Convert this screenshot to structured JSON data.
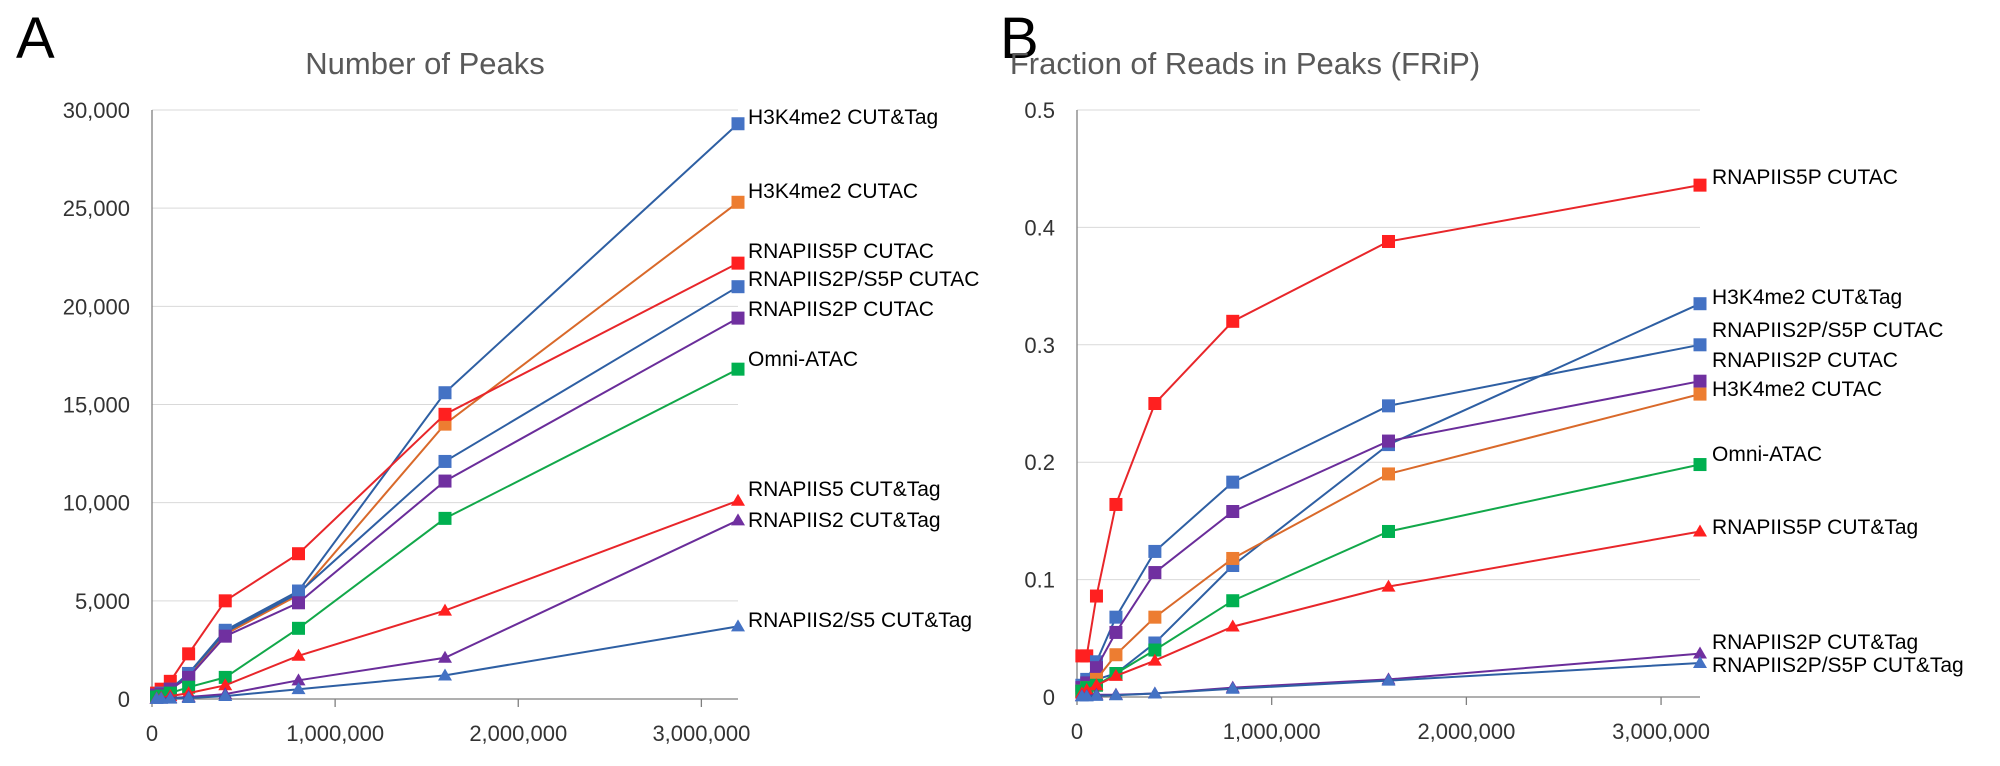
{
  "chart_data": [
    {
      "type": "line",
      "panel_label": "A",
      "title": "Number of Peaks",
      "xlabel": "",
      "ylabel": "",
      "xlim": [
        0,
        3200000
      ],
      "ylim": [
        0,
        30000
      ],
      "xticks": [
        0,
        1000000,
        2000000,
        3000000
      ],
      "xtick_labels": [
        "0",
        "1,000,000",
        "2,000,000",
        "3,000,000"
      ],
      "yticks": [
        0,
        5000,
        10000,
        15000,
        20000,
        25000,
        30000
      ],
      "ytick_labels": [
        "0",
        "5,000",
        "10,000",
        "15,000",
        "20,000",
        "25,000",
        "30,000"
      ],
      "grid": true,
      "legend": "labels at line ends",
      "x": [
        25000,
        50000,
        100000,
        200000,
        400000,
        800000,
        1600000,
        3200000
      ],
      "series": [
        {
          "name": "H3K4me2 CUT&Tag",
          "color": "#4472c4",
          "line_color": "#2e5fa3",
          "marker": "square",
          "values": [
            100,
            200,
            400,
            1300,
            3500,
            5500,
            15600,
            29300
          ]
        },
        {
          "name": "H3K4me2 CUTAC",
          "color": "#ed7d31",
          "line_color": "#d9692a",
          "marker": "square",
          "values": [
            200,
            300,
            500,
            1200,
            3300,
            5300,
            14000,
            25300
          ]
        },
        {
          "name": "RNAPIIS5P CUTAC",
          "color": "#ff2020",
          "line_color": "#e8262a",
          "marker": "square",
          "values": [
            300,
            500,
            900,
            2300,
            5000,
            7400,
            14500,
            22200
          ]
        },
        {
          "name": "RNAPIIS2P/S5P CUTAC",
          "color": "#4472c4",
          "line_color": "#2e5fa3",
          "marker": "square",
          "values": [
            200,
            300,
            500,
            1300,
            3400,
            5400,
            12100,
            21000
          ]
        },
        {
          "name": "RNAPIIS2P CUTAC",
          "color": "#7030a0",
          "line_color": "#6a2d9a",
          "marker": "square",
          "values": [
            200,
            250,
            500,
            1100,
            3200,
            4900,
            11100,
            19400
          ]
        },
        {
          "name": "Omni-ATAC",
          "color": "#00b050",
          "line_color": "#12a84a",
          "marker": "square",
          "values": [
            100,
            150,
            300,
            600,
            1100,
            3600,
            9200,
            16800
          ]
        },
        {
          "name": "RNAPIIS5 CUT&Tag",
          "color": "#ff2020",
          "line_color": "#e8262a",
          "marker": "triangle",
          "values": [
            30,
            60,
            150,
            300,
            700,
            2200,
            4500,
            10100
          ]
        },
        {
          "name": "RNAPIIS2 CUT&Tag",
          "color": "#7030a0",
          "line_color": "#6a2d9a",
          "marker": "triangle",
          "values": [
            10,
            20,
            50,
            100,
            250,
            950,
            2100,
            9100
          ]
        },
        {
          "name": "RNAPIIS2/S5 CUT&Tag",
          "color": "#4472c4",
          "line_color": "#2e5fa3",
          "marker": "triangle",
          "values": [
            5,
            10,
            20,
            50,
            150,
            500,
            1200,
            3700
          ]
        }
      ]
    },
    {
      "type": "line",
      "panel_label": "B",
      "title": "Fraction of Reads in Peaks (FRiP)",
      "xlabel": "",
      "ylabel": "",
      "xlim": [
        0,
        3200000
      ],
      "ylim": [
        0,
        0.5
      ],
      "xticks": [
        0,
        1000000,
        2000000,
        3000000
      ],
      "xtick_labels": [
        "0",
        "1,000,000",
        "2,000,000",
        "3,000,000"
      ],
      "yticks": [
        0,
        0.1,
        0.2,
        0.3,
        0.4,
        0.5
      ],
      "ytick_labels": [
        "0",
        "0.1",
        "0.2",
        "0.3",
        "0.4",
        "0.5"
      ],
      "grid": true,
      "legend": "labels at line ends",
      "x": [
        25000,
        50000,
        100000,
        200000,
        400000,
        800000,
        1600000,
        3200000
      ],
      "series": [
        {
          "name": "RNAPIIS5P CUTAC",
          "color": "#ff2020",
          "line_color": "#e8262a",
          "marker": "square",
          "values": [
            0.035,
            0.035,
            0.086,
            0.164,
            0.25,
            0.32,
            0.388,
            0.436
          ]
        },
        {
          "name": "H3K4me2 CUT&Tag",
          "color": "#4472c4",
          "line_color": "#2e5fa3",
          "marker": "square",
          "values": [
            0.005,
            0.01,
            0.015,
            0.02,
            0.046,
            0.112,
            0.215,
            0.335
          ]
        },
        {
          "name": "RNAPIIS2P/S5P CUTAC",
          "color": "#4472c4",
          "line_color": "#2e5fa3",
          "marker": "square",
          "values": [
            0.01,
            0.015,
            0.03,
            0.068,
            0.124,
            0.183,
            0.248,
            0.3
          ]
        },
        {
          "name": "RNAPIIS2P CUTAC",
          "color": "#7030a0",
          "line_color": "#6a2d9a",
          "marker": "square",
          "values": [
            0.008,
            0.012,
            0.025,
            0.055,
            0.106,
            0.158,
            0.218,
            0.269
          ]
        },
        {
          "name": "H3K4me2 CUTAC",
          "color": "#ed7d31",
          "line_color": "#d9692a",
          "marker": "square",
          "values": [
            0.005,
            0.008,
            0.015,
            0.036,
            0.068,
            0.118,
            0.19,
            0.258
          ]
        },
        {
          "name": "Omni-ATAC",
          "color": "#00b050",
          "line_color": "#12a84a",
          "marker": "square",
          "values": [
            0.005,
            0.008,
            0.01,
            0.02,
            0.04,
            0.082,
            0.141,
            0.198
          ]
        },
        {
          "name": "RNAPIIS5P CUT&Tag",
          "color": "#ff2020",
          "line_color": "#e8262a",
          "marker": "triangle",
          "values": [
            0.003,
            0.006,
            0.01,
            0.018,
            0.031,
            0.06,
            0.094,
            0.141
          ]
        },
        {
          "name": "RNAPIIS2P CUT&Tag",
          "color": "#7030a0",
          "line_color": "#6a2d9a",
          "marker": "triangle",
          "values": [
            0.001,
            0.001,
            0.002,
            0.002,
            0.003,
            0.008,
            0.015,
            0.037
          ]
        },
        {
          "name": "RNAPIIS2P/S5P CUT&Tag",
          "color": "#4472c4",
          "line_color": "#2e5fa3",
          "marker": "triangle",
          "values": [
            0.0005,
            0.0005,
            0.001,
            0.0015,
            0.003,
            0.007,
            0.014,
            0.029
          ]
        }
      ]
    }
  ]
}
